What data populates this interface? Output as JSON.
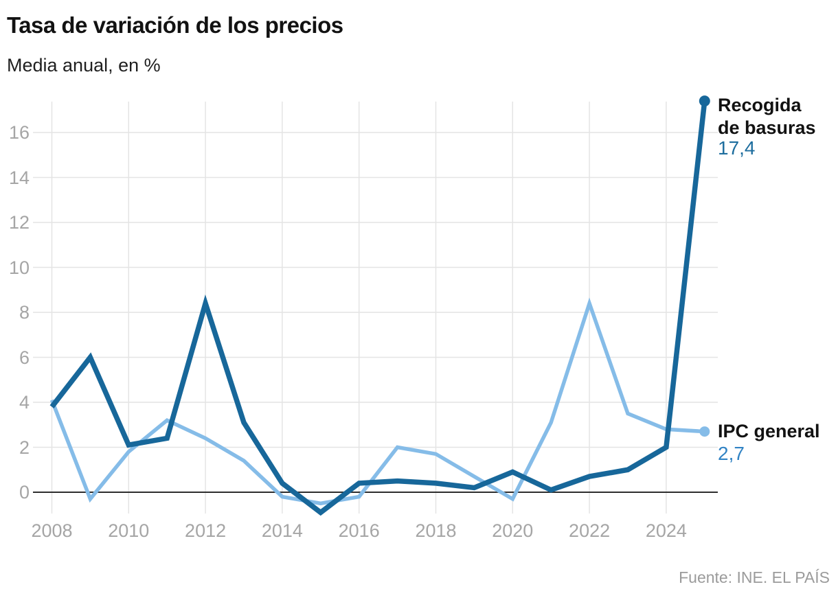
{
  "header": {
    "title": "Tasa de variación de los precios",
    "subtitle": "Media anual, en %"
  },
  "chart_data": {
    "type": "line",
    "title": "Tasa de variación de los precios",
    "subtitle": "Media anual, en %",
    "x": [
      2008,
      2009,
      2010,
      2011,
      2012,
      2013,
      2014,
      2015,
      2016,
      2017,
      2018,
      2019,
      2020,
      2021,
      2022,
      2023,
      2024,
      2025
    ],
    "series": [
      {
        "name": "Recogida de basuras",
        "color": "#17679A",
        "values": [
          3.8,
          6.0,
          2.1,
          2.4,
          8.4,
          3.1,
          0.4,
          -0.9,
          0.4,
          0.5,
          0.4,
          0.2,
          0.9,
          0.1,
          0.7,
          1.0,
          2.0,
          17.4
        ]
      },
      {
        "name": "IPC general",
        "color": "#85BCE8",
        "values": [
          4.1,
          -0.3,
          1.8,
          3.2,
          2.4,
          1.4,
          -0.2,
          -0.5,
          -0.2,
          2.0,
          1.7,
          0.7,
          -0.3,
          3.1,
          8.4,
          3.5,
          2.8,
          2.7
        ]
      }
    ],
    "xticks": [
      2008,
      2010,
      2012,
      2014,
      2016,
      2018,
      2020,
      2022,
      2024
    ],
    "yticks": [
      0,
      2,
      4,
      6,
      8,
      10,
      12,
      14,
      16
    ],
    "ylim": [
      -1.2,
      17.4
    ],
    "xlabel": "",
    "ylabel": "",
    "grid": true,
    "legend_position": "line-end-right"
  },
  "annotations": {
    "recogida": {
      "line1": "Recogida",
      "line2": "de basuras",
      "value": "17,4",
      "value_color": "#1D6D9E"
    },
    "ipc": {
      "label": "IPC general",
      "value": "2,7",
      "value_color": "#3183C4"
    }
  },
  "footer": {
    "source": "Fuente: INE. EL PAÍS"
  },
  "colors": {
    "grid": "#E4E4E4",
    "zero_line": "#2D2D2D",
    "axis_text": "#A5A5A5",
    "title_text": "#121212",
    "source_text": "#9B9B9B",
    "background": "#FFFFFF"
  }
}
